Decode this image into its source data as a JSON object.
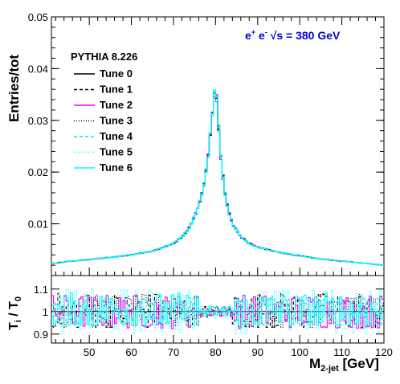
{
  "chart_data": [
    {
      "type": "line",
      "panel": "top",
      "ylabel": "Entries/tot",
      "ylim": [
        0.0,
        0.05
      ],
      "xlim": [
        41,
        120
      ],
      "yticks": [
        "0.01",
        "0.02",
        "0.03",
        "0.04",
        "0.05"
      ],
      "annotation": {
        "energy_main": "e",
        "energy_sup1": "+",
        "energy_e2": " e",
        "energy_sup2": "-",
        "energy_rest": " √s = 380 GeV"
      },
      "legend": {
        "title": "PYTHIA 8.226",
        "placement": "top-left"
      },
      "series": [
        {
          "name": "Tune 0",
          "color": "#000000",
          "dash": "solid"
        },
        {
          "name": "Tune 1",
          "color": "#000000",
          "dash": "dashed"
        },
        {
          "name": "Tune 2",
          "color": "#ff00ff",
          "dash": "solid"
        },
        {
          "name": "Tune 3",
          "color": "#000000",
          "dash": "dotted"
        },
        {
          "name": "Tune 4",
          "color": "#00e0e0",
          "dash": "dashed"
        },
        {
          "name": "Tune 5",
          "color": "#00ffff",
          "dash": "dotted"
        },
        {
          "name": "Tune 6",
          "color": "#00ffff",
          "dash": "solid"
        }
      ],
      "shape_points": {
        "x": [
          41,
          45,
          50,
          55,
          60,
          65,
          70,
          72,
          74,
          76,
          77,
          78,
          79,
          79.5,
          80,
          80.5,
          81,
          82,
          83,
          84,
          86,
          88,
          90,
          95,
          100,
          105,
          110,
          115,
          120
        ],
        "y": [
          0.0023,
          0.0027,
          0.0031,
          0.0035,
          0.004,
          0.0047,
          0.0062,
          0.0075,
          0.0095,
          0.0135,
          0.0165,
          0.0215,
          0.029,
          0.034,
          0.0365,
          0.032,
          0.025,
          0.017,
          0.0125,
          0.01,
          0.0075,
          0.0062,
          0.0055,
          0.0045,
          0.0038,
          0.0032,
          0.0028,
          0.0024,
          0.002
        ]
      }
    },
    {
      "type": "line",
      "panel": "bottom",
      "ylabel": "T_i / T_0",
      "ylabel_main": "T",
      "ylabel_sub1": "i",
      "ylabel_mid": " / T",
      "ylabel_sub2": "0",
      "xlabel_main": "M",
      "xlabel_sub": "2-jet",
      "xlabel_unit": " [GeV]",
      "xlim": [
        41,
        120
      ],
      "ylim": [
        0.86,
        1.16
      ],
      "reference": 1.0,
      "yticks": [
        "0.9",
        "1",
        "1.1"
      ],
      "xticks": [
        "50",
        "60",
        "70",
        "80",
        "90",
        "100",
        "110",
        "120"
      ],
      "ratio_ranges": {
        "Tune 1": [
          0.93,
          1.12
        ],
        "Tune 2": [
          0.92,
          1.09
        ],
        "Tune 3": [
          0.93,
          1.1
        ],
        "Tune 4": [
          0.94,
          1.1
        ],
        "Tune 5": [
          0.9,
          1.13
        ],
        "Tune 6": [
          0.94,
          1.13
        ]
      }
    }
  ]
}
